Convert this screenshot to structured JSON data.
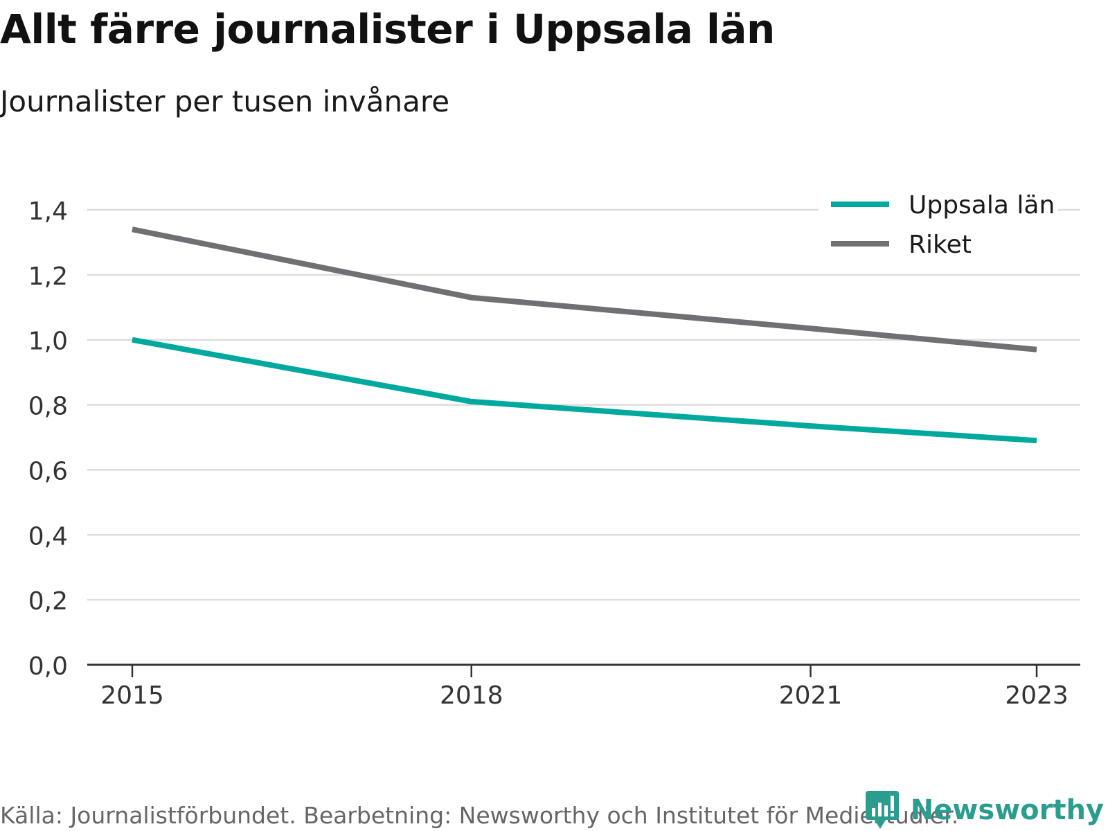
{
  "header": {
    "title": "Allt färre journalister i Uppsala län",
    "subtitle": "Journalister per tusen invånare"
  },
  "footer": {
    "source": "Källa: Journalistförbundet. Bearbetning: Newsworthy och Institutet för Mediestudier.",
    "brand": "Newsworthy"
  },
  "colors": {
    "uppsala": "#00A99D",
    "riket": "#707074",
    "grid": "#dddddd",
    "axis": "#333333",
    "brand": "#2a9d8f"
  },
  "chart_data": {
    "type": "line",
    "title": "Allt färre journalister i Uppsala län",
    "subtitle": "Journalister per tusen invånare",
    "x": [
      2015,
      2018,
      2021,
      2023
    ],
    "x_ticks": [
      "2015",
      "2018",
      "2021",
      "2023"
    ],
    "ylim": [
      0,
      1.4
    ],
    "y_ticks": [
      "0,0",
      "0,2",
      "0,4",
      "0,6",
      "0,8",
      "1,0",
      "1,2",
      "1,4"
    ],
    "grid": true,
    "legend_position": "top-right",
    "series": [
      {
        "name": "Uppsala län",
        "color": "#00A99D",
        "values": [
          1.0,
          0.81,
          0.735,
          0.69
        ]
      },
      {
        "name": "Riket",
        "color": "#707074",
        "values": [
          1.34,
          1.13,
          1.035,
          0.97
        ]
      }
    ]
  }
}
